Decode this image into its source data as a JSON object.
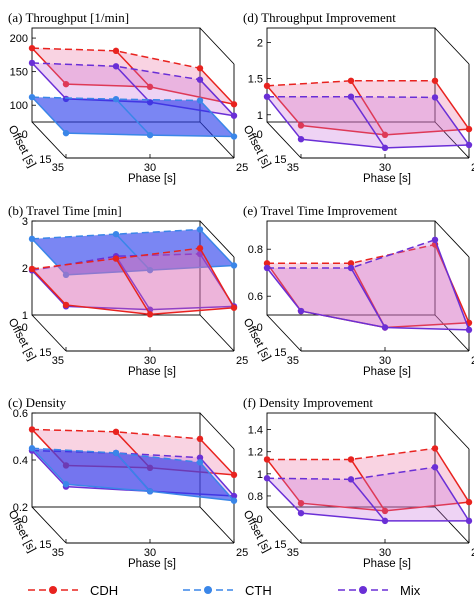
{
  "figure": {
    "title": ""
  },
  "legend": [
    {
      "label": "CDH",
      "color": "#e8231f"
    },
    {
      "label": "CTH",
      "color": "#3a86e8"
    },
    {
      "label": "Mix",
      "color": "#6a2fd6"
    }
  ],
  "chart_data": [
    {
      "type": "surface3d",
      "title": "(a) Throughput [1/min]",
      "xlabel": "Phase [s]",
      "ylabel": "Offset [s]",
      "xticks": [
        "35",
        "30",
        "25"
      ],
      "yticks": [
        "15",
        "0"
      ],
      "zticks": [
        "200",
        "150",
        "100"
      ],
      "zlim": [
        75,
        215
      ],
      "series": [
        {
          "name": "CDH",
          "front": [
            185,
            181,
            155
          ],
          "back": [
            185,
            181,
            155
          ]
        },
        {
          "name": "Mix",
          "front": [
            163,
            158,
            138
          ],
          "back": [
            163,
            158,
            138
          ]
        },
        {
          "name": "CTH",
          "front": [
            112,
            109,
            107
          ],
          "back": [
            112,
            109,
            107
          ]
        }
      ]
    },
    {
      "type": "surface3d",
      "title": "(d) Throughput Improvement",
      "xlabel": "Phase [s]",
      "ylabel": "Offset [s]",
      "xticks": [
        "35",
        "30",
        "25"
      ],
      "yticks": [
        "15",
        "0"
      ],
      "zticks": [
        "2",
        "1.5",
        "1"
      ],
      "zlim": [
        0.9,
        2.2
      ],
      "series": [
        {
          "name": "CDH",
          "front": [
            1.35,
            1.22,
            1.3
          ],
          "back": [
            1.4,
            1.47,
            1.47
          ]
        },
        {
          "name": "Mix",
          "front": [
            1.16,
            1.04,
            1.08
          ],
          "back": [
            1.25,
            1.25,
            1.24
          ]
        }
      ]
    },
    {
      "type": "surface3d",
      "title": "(b) Travel Time [min]",
      "xlabel": "Phase [s]",
      "ylabel": "Offset [s]",
      "xticks": [
        "35",
        "30",
        "25"
      ],
      "yticks": [
        "15",
        "0"
      ],
      "zticks": [
        "3",
        "2",
        "1"
      ],
      "zlim": [
        1,
        3
      ],
      "series": [
        {
          "name": "CTH",
          "front": [
            2.62,
            2.72,
            2.82
          ],
          "back": [
            2.62,
            2.72,
            2.82
          ]
        },
        {
          "name": "Mix",
          "front": [
            1.95,
            1.88,
            1.95
          ],
          "back": [
            1.95,
            2.25,
            2.3
          ]
        },
        {
          "name": "CDH",
          "front": [
            1.98,
            1.78,
            1.92
          ],
          "back": [
            1.98,
            2.2,
            2.42
          ]
        }
      ]
    },
    {
      "type": "surface3d",
      "title": "(e) Travel Time Improvement",
      "xlabel": "Phase [s]",
      "ylabel": "Offset [s]",
      "xticks": [
        "35",
        "30",
        "25"
      ],
      "yticks": [
        "15",
        "0"
      ],
      "zticks": [
        "0.8",
        "0.6"
      ],
      "zlim": [
        0.52,
        0.92
      ],
      "series": [
        {
          "name": "CDH",
          "front": [
            0.69,
            0.62,
            0.64
          ],
          "back": [
            0.74,
            0.74,
            0.82
          ]
        },
        {
          "name": "Mix",
          "front": [
            0.69,
            0.62,
            0.61
          ],
          "back": [
            0.72,
            0.72,
            0.84
          ]
        }
      ]
    },
    {
      "type": "surface3d",
      "title": "(c) Density",
      "xlabel": "Phase [s]",
      "ylabel": "Offset [s]",
      "xticks": [
        "35",
        "30",
        "25"
      ],
      "yticks": [
        "15",
        "0"
      ],
      "zticks": [
        "0.6",
        "0.4",
        "0.2"
      ],
      "zlim": [
        0.2,
        0.6
      ],
      "series": [
        {
          "name": "CDH",
          "front": [
            0.53,
            0.52,
            0.49
          ],
          "back": [
            0.53,
            0.52,
            0.49
          ]
        },
        {
          "name": "Mix",
          "front": [
            0.44,
            0.42,
            0.4
          ],
          "back": [
            0.44,
            0.43,
            0.41
          ]
        },
        {
          "name": "CTH",
          "front": [
            0.45,
            0.42,
            0.38
          ],
          "back": [
            0.45,
            0.43,
            0.39
          ]
        }
      ]
    },
    {
      "type": "surface3d",
      "title": "(f) Density Improvement",
      "xlabel": "Phase [s]",
      "ylabel": "Offset [s]",
      "xticks": [
        "35",
        "30",
        "25"
      ],
      "yticks": [
        "15",
        "0"
      ],
      "zticks": [
        "1.4",
        "1.2",
        "1",
        "0.8"
      ],
      "zlim": [
        0.7,
        1.55
      ],
      "series": [
        {
          "name": "CDH",
          "front": [
            1.06,
            0.99,
            1.07
          ],
          "back": [
            1.13,
            1.13,
            1.23
          ]
        },
        {
          "name": "Mix",
          "front": [
            0.97,
            0.9,
            0.9
          ],
          "back": [
            0.96,
            0.95,
            1.06
          ]
        }
      ]
    }
  ]
}
